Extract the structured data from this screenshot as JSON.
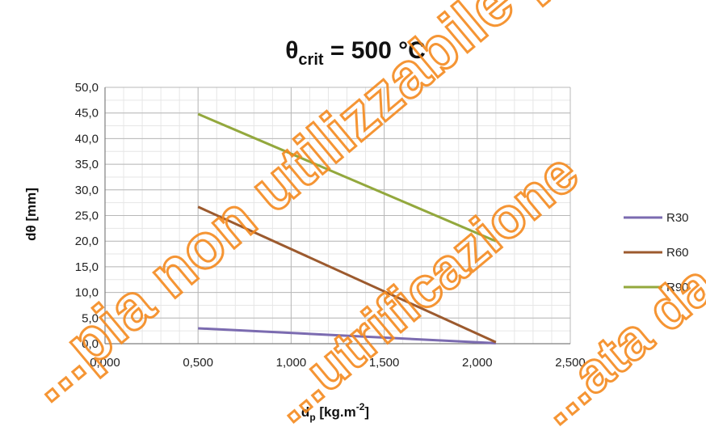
{
  "chart_data": {
    "type": "line",
    "title": {
      "main": "θ",
      "sub": "crit",
      "rest": " = 500 °C"
    },
    "xlabel": {
      "main": "d",
      "sub": "p",
      "rest": " [kg.m",
      "sup": "-2",
      "tail": "]"
    },
    "ylabel": "dθ [mm]",
    "xlim": [
      0,
      2.5
    ],
    "ylim": [
      0,
      50
    ],
    "x_ticks": [
      0,
      0.5,
      1.0,
      1.5,
      2.0,
      2.5
    ],
    "x_tick_labels": [
      "0,000",
      "0,500",
      "1,000",
      "1,500",
      "2,000",
      "2,500"
    ],
    "y_ticks": [
      0,
      5,
      10,
      15,
      20,
      25,
      30,
      35,
      40,
      45,
      50
    ],
    "y_tick_labels": [
      "0,0",
      "5,0",
      "10,0",
      "15,0",
      "20,0",
      "25,0",
      "30,0",
      "35,0",
      "40,0",
      "45,0",
      "50,0"
    ],
    "grid": true,
    "legend_position": "right",
    "series": [
      {
        "name": "R30",
        "color": "#7b6bb0",
        "x": [
          0.5,
          2.1
        ],
        "y": [
          3.0,
          0.1
        ]
      },
      {
        "name": "R60",
        "color": "#9c5a2e",
        "x": [
          0.5,
          2.1
        ],
        "y": [
          26.7,
          0.3
        ]
      },
      {
        "name": "R90",
        "color": "#93a83d",
        "x": [
          0.5,
          2.1
        ],
        "y": [
          44.8,
          20.0
        ]
      }
    ]
  },
  "watermark": {
    "line1": "...pia non utilizzabile perchè",
    "line2": "...utrificazione",
    "line3": "...ata da"
  }
}
